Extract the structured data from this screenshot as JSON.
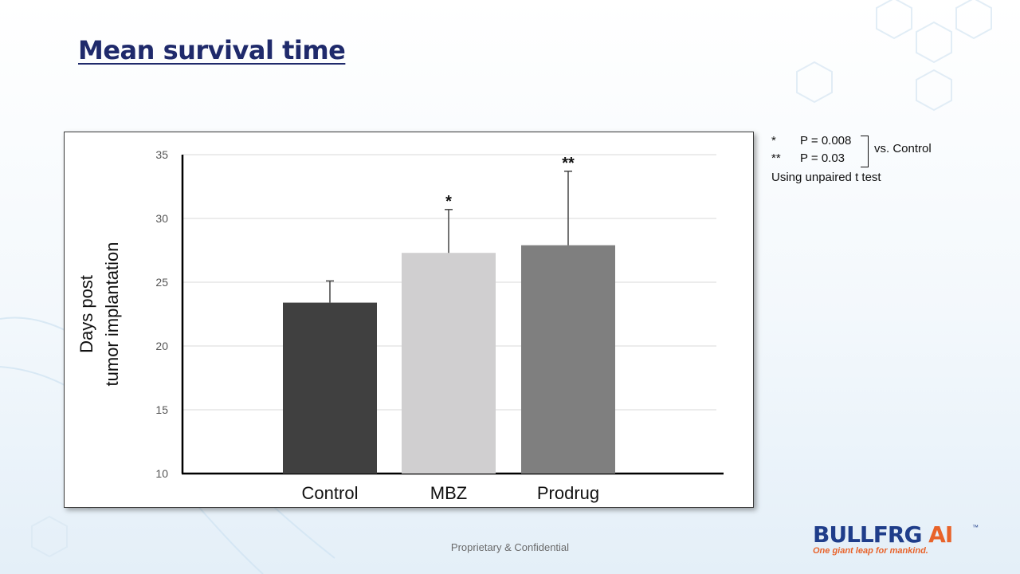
{
  "slide": {
    "title": "Mean survival time",
    "footer": "Proprietary & Confidential"
  },
  "stats_note": {
    "line1_mark": "*",
    "line1_p": "P = 0.008",
    "line2_mark": "**",
    "line2_p": "P = 0.03",
    "comparison": "vs. Control",
    "method": "Using unpaired t test"
  },
  "logo": {
    "name_part1": "BULLFR",
    "name_part2": "G",
    "name_part3": " AI",
    "trademark": "™",
    "tagline": "One giant leap for mankind."
  },
  "colors": {
    "title": "#1f2a6b",
    "logo_blue": "#1f3d8a",
    "logo_orange": "#e8632a"
  },
  "chart_data": {
    "type": "bar",
    "title": "",
    "ylabel_lines": [
      "Days post",
      "tumor implantation"
    ],
    "xlabel": "",
    "categories": [
      "Control",
      "MBZ",
      "Prodrug"
    ],
    "values": [
      23.4,
      27.3,
      27.9
    ],
    "error_upper": [
      25.1,
      30.7,
      33.7
    ],
    "significance": [
      "",
      "*",
      "**"
    ],
    "bar_colors": [
      "#404040",
      "#d0cfd0",
      "#7f7f7f"
    ],
    "ylim": [
      10,
      35
    ],
    "yticks": [
      10,
      15,
      20,
      25,
      30,
      35
    ],
    "grid": true,
    "legend": "none"
  }
}
